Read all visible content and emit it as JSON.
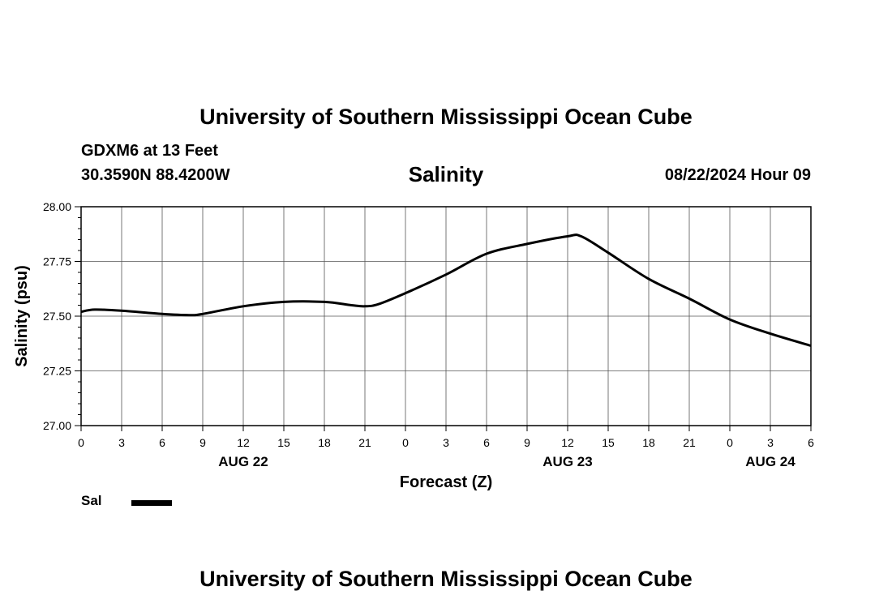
{
  "header": {
    "title": "University of Southern Mississippi Ocean Cube",
    "station": "GDXM6 at 13 Feet",
    "coordinates": "30.3590N  88.4200W",
    "datetime": "08/22/2024 Hour 09"
  },
  "footer": {
    "title": "University of Southern Mississippi Ocean Cube"
  },
  "chart_data": {
    "type": "line",
    "title": "Salinity",
    "xlabel": "Forecast (Z)",
    "ylabel": "Salinity (psu)",
    "xlim": [
      0,
      54
    ],
    "ylim": [
      27.0,
      28.0
    ],
    "x_tick_values": [
      0,
      3,
      6,
      9,
      12,
      15,
      18,
      21,
      24,
      27,
      30,
      33,
      36,
      39,
      42,
      45,
      48,
      51,
      54
    ],
    "x_tick_labels": [
      "0",
      "3",
      "6",
      "9",
      "12",
      "15",
      "18",
      "21",
      "0",
      "3",
      "6",
      "9",
      "12",
      "15",
      "18",
      "21",
      "0",
      "3",
      "6"
    ],
    "day_labels": [
      {
        "x": 12,
        "label": "AUG 22"
      },
      {
        "x": 36,
        "label": "AUG 23"
      },
      {
        "x": 51,
        "label": "AUG 24"
      }
    ],
    "y_tick_values": [
      27.0,
      27.25,
      27.5,
      27.75,
      28.0
    ],
    "y_tick_labels": [
      "27.00",
      "27.25",
      "27.50",
      "27.75",
      "28.00"
    ],
    "y_minor_step": 0.05,
    "grid": true,
    "legend": "bottom-left",
    "series": [
      {
        "name": "Sal",
        "color": "#000000",
        "x": [
          0,
          1,
          3,
          6,
          8,
          9,
          12,
          15,
          18,
          20,
          21,
          22,
          24,
          27,
          30,
          33,
          36,
          37,
          39,
          42,
          45,
          48,
          51,
          54
        ],
        "y": [
          27.52,
          27.53,
          27.525,
          27.51,
          27.505,
          27.51,
          27.545,
          27.565,
          27.565,
          27.55,
          27.545,
          27.555,
          27.605,
          27.69,
          27.785,
          27.83,
          27.865,
          27.865,
          27.79,
          27.67,
          27.58,
          27.485,
          27.42,
          27.365
        ]
      }
    ]
  }
}
